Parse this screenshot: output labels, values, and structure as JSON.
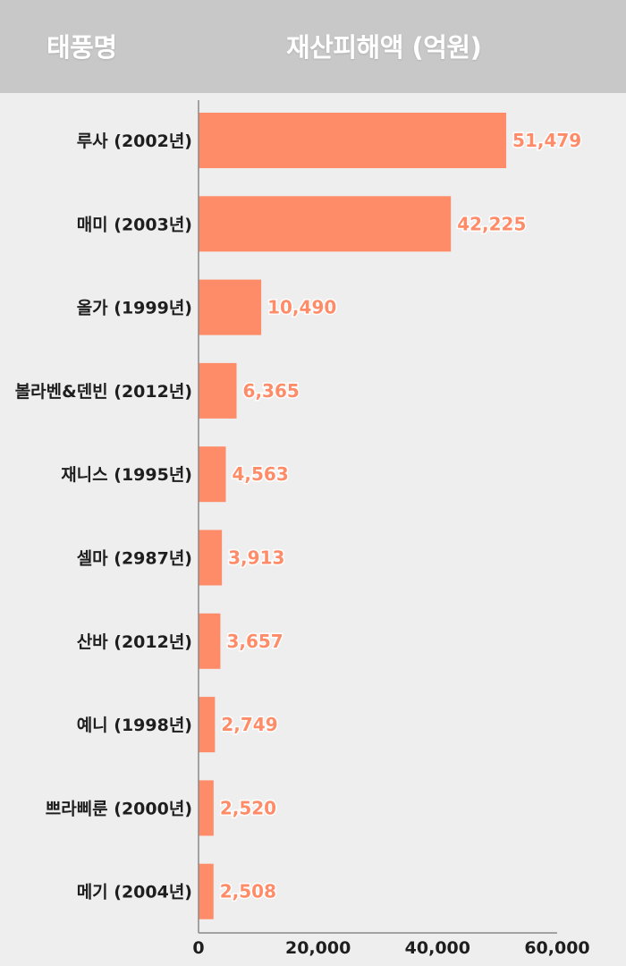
{
  "header": {
    "col_name": "태풍명",
    "col_value": "재산피해액 (억원)"
  },
  "colors": {
    "header_bg": "#c8c8c8",
    "page_bg": "#efeeee",
    "bar": "#ff8c69",
    "value_label": "#ff8c69",
    "category_label": "#1e1e1e",
    "axis": "#888888"
  },
  "chart_data": {
    "type": "bar",
    "orientation": "horizontal",
    "categories": [
      "루사 (2002년)",
      "매미 (2003년)",
      "올가 (1999년)",
      "볼라벤&덴빈 (2012년)",
      "재니스 (1995년)",
      "셀마 (2987년)",
      "산바 (2012년)",
      "예니 (1998년)",
      "쁘라삐룬 (2000년)",
      "메기 (2004년)"
    ],
    "values": [
      51479,
      42225,
      10490,
      6365,
      4563,
      3913,
      3657,
      2749,
      2520,
      2508
    ],
    "value_labels": [
      "51,479",
      "42,225",
      "10,490",
      "6,365",
      "4,563",
      "3,913",
      "3,657",
      "2,749",
      "2,520",
      "2,508"
    ],
    "xlim": [
      0,
      60000
    ],
    "x_ticks": [
      0,
      20000,
      40000,
      60000
    ],
    "x_tick_labels": [
      "0",
      "20,000",
      "40,000",
      "60,000"
    ],
    "grid": false,
    "legend": "none"
  }
}
